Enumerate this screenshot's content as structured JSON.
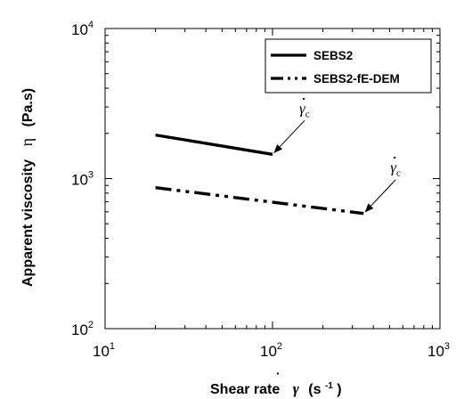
{
  "chart_data": {
    "type": "line",
    "xscale": "log",
    "yscale": "log",
    "xlim": [
      10,
      1000
    ],
    "ylim": [
      100,
      10000
    ],
    "x_ticks": [
      {
        "base": "10",
        "exp": "1"
      },
      {
        "base": "10",
        "exp": "2"
      },
      {
        "base": "10",
        "exp": "3"
      }
    ],
    "y_ticks": [
      {
        "base": "10",
        "exp": "2"
      },
      {
        "base": "10",
        "exp": "3"
      },
      {
        "base": "10",
        "exp": "4"
      }
    ],
    "xlabel": {
      "prefix": "Shear rate",
      "symbol": "γ",
      "open": "(s",
      "exp": "-1",
      "close": ")"
    },
    "ylabel": {
      "prefix": "Apparent viscosity",
      "symbol": "η",
      "units": "(Pa.s)"
    },
    "legend_position": "top-right",
    "series": [
      {
        "name": "SEBS2",
        "style": "solid",
        "x": [
          20,
          100
        ],
        "y": [
          1950,
          1450
        ]
      },
      {
        "name": "SEBS2-fE-DEM",
        "style": "dash-dot-dot",
        "x": [
          20,
          350
        ],
        "y": [
          870,
          585
        ]
      }
    ],
    "annotations": [
      {
        "symbol": "γ",
        "subscript": "c",
        "target": [
          100,
          1450
        ]
      },
      {
        "symbol": "γ",
        "subscript": "c",
        "target": [
          350,
          585
        ]
      }
    ],
    "grid": false
  }
}
